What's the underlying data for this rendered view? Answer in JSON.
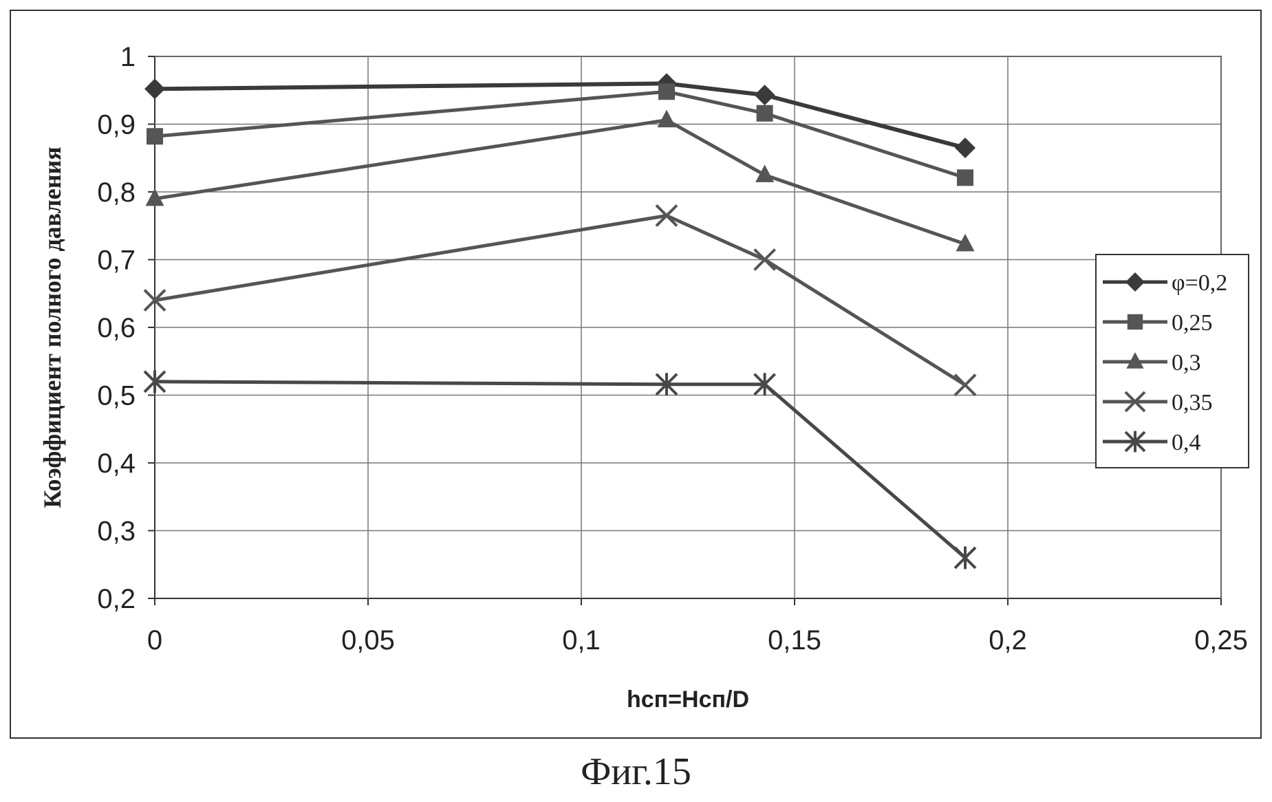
{
  "caption": "Фиг.15",
  "chart_data": {
    "type": "line",
    "title": "",
    "xlabel": "hсп=Hсп/D",
    "ylabel": "Коэффициент полного давления",
    "xlim": [
      0,
      0.25
    ],
    "ylim": [
      0.2,
      1
    ],
    "x_ticks": [
      "0",
      "0,05",
      "0,1",
      "0,15",
      "0,2",
      "0,25"
    ],
    "x_tick_values": [
      0,
      0.05,
      0.1,
      0.15,
      0.2,
      0.25
    ],
    "y_ticks": [
      "0,2",
      "0,3",
      "0,4",
      "0,5",
      "0,6",
      "0,7",
      "0,8",
      "0,9",
      "1"
    ],
    "y_tick_values": [
      0.2,
      0.3,
      0.4,
      0.5,
      0.6,
      0.7,
      0.8,
      0.9,
      1.0
    ],
    "grid": true,
    "legend_position": "right",
    "x": [
      0,
      0.12,
      0.143,
      0.19
    ],
    "series": [
      {
        "name": "φ=0,2",
        "marker": "diamond",
        "values": [
          0.952,
          0.96,
          0.943,
          0.865
        ],
        "color": "#3a3a3a"
      },
      {
        "name": "0,25",
        "marker": "square",
        "values": [
          0.882,
          0.948,
          0.916,
          0.821
        ],
        "color": "#555555"
      },
      {
        "name": "0,3",
        "marker": "triangle",
        "values": [
          0.79,
          0.906,
          0.825,
          0.723
        ],
        "color": "#555555"
      },
      {
        "name": "0,35",
        "marker": "x",
        "values": [
          0.64,
          0.765,
          0.7,
          0.515
        ],
        "color": "#555555"
      },
      {
        "name": "0,4",
        "marker": "asterisk",
        "values": [
          0.52,
          0.516,
          0.516,
          0.26
        ],
        "color": "#484848"
      }
    ]
  }
}
